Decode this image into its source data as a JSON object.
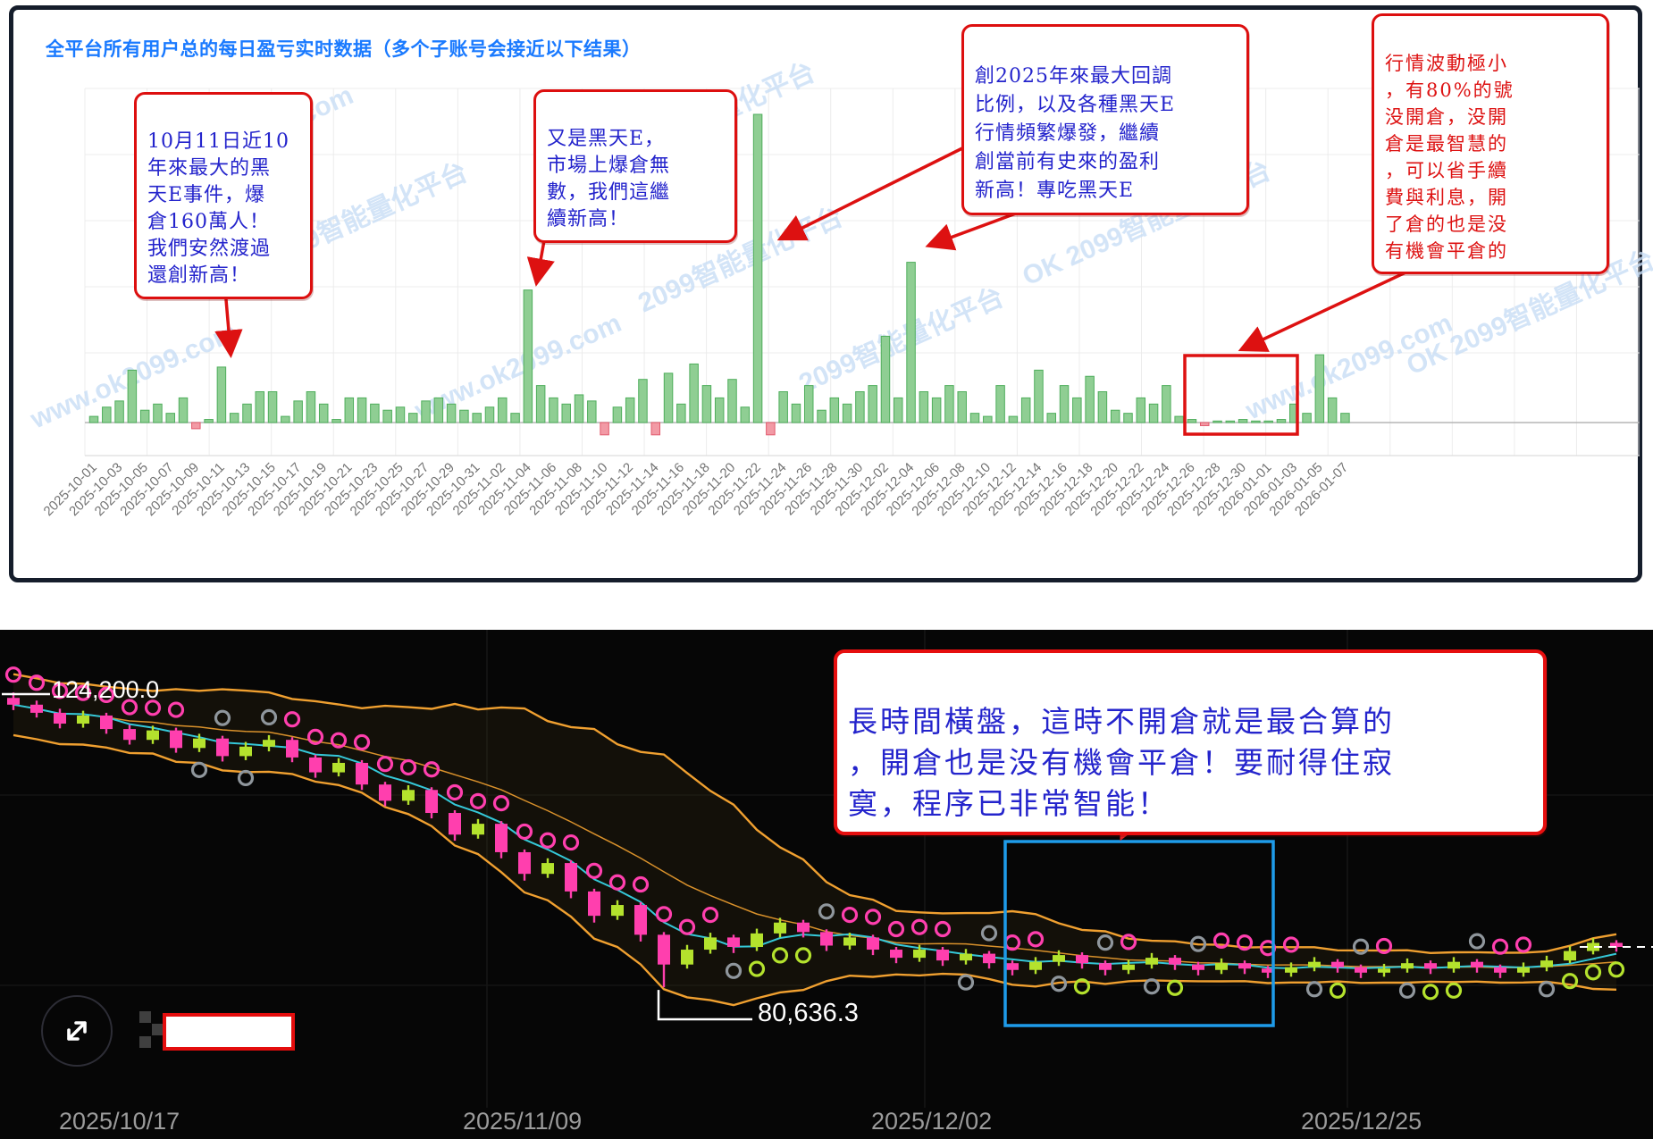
{
  "top_panel": {
    "title": "全平台所有用户总的每日盈亏实时数据（多个子账号会接近以下结果）",
    "watermarks": [
      "www.ok2099.com",
      "2099智能量化平台",
      "OK 2099智能量化平台"
    ],
    "annotations": [
      {
        "text": "10月11日近10\n年來最大的黑\n天E事件，爆\n倉160萬人！\n我們安然渡過\n還創新高！",
        "color": "#2424cc"
      },
      {
        "text": "又是黑天E，\n市場上爆倉無\n數，我們這繼\n續新高！",
        "color": "#2424cc"
      },
      {
        "text": "創2025年來最大回調\n比例，以及各種黑天E\n行情頻繁爆發，繼續\n創當前有史來的盈利\n新高！專吃黑天E",
        "color": "#2424cc"
      },
      {
        "text": "行情波動極小\n，有80%的號\n没開倉，没開\n倉是最智慧的\n，可以省手續\n費與利息，開\n了倉的也是没\n有機會平倉的",
        "color": "#dd1111"
      }
    ]
  },
  "bottom_panel": {
    "annotation": {
      "text": "長時間橫盤，這時不開倉就是最合算的\n，開倉也是没有機會平倉！要耐得住寂\n寞，程序已非常智能！"
    },
    "price_high": "124,200.0",
    "price_low": "80,636.3",
    "x_labels": [
      "2025/10/17",
      "2025/11/09",
      "2025/12/02",
      "2025/12/25"
    ]
  },
  "colors": {
    "accent_blue": "#1a7aff",
    "bar_green_fill": "#8fce93",
    "bar_green_stroke": "#4fae5c",
    "bar_red_fill": "#f29aa5",
    "bar_red_stroke": "#e2596c",
    "annotation_red": "#dd1111",
    "annotation_blue": "#2424cc",
    "candle_up": "#b4e22d",
    "candle_down": "#ff3fae",
    "band_orange": "#f0a030",
    "ma_cyan": "#35c8d8",
    "sar_gray": "#8f969c",
    "highlight_blue": "#1e9be9",
    "watermark_blue": "#c8def6"
  },
  "chart_data": [
    {
      "type": "bar",
      "title": "全平台所有用户总的每日盈亏实时数据（多个子账号会接近以下结果）",
      "frequency": "daily",
      "start_date": "2025-10-01",
      "end_date": "2026-01-07",
      "xlabel": "",
      "ylabel": "",
      "grid": true,
      "tick_labels": [
        "2025-10-01",
        "2025-10-03",
        "2025-10-05",
        "2025-10-07",
        "2025-10-09",
        "2025-10-11",
        "2025-10-13",
        "2025-10-15",
        "2025-10-17",
        "2025-10-19",
        "2025-10-21",
        "2025-10-23",
        "2025-10-25",
        "2025-10-27",
        "2025-10-29",
        "2025-10-31",
        "2025-11-02",
        "2025-11-04",
        "2025-11-06",
        "2025-11-08",
        "2025-11-10",
        "2025-11-12",
        "2025-11-14",
        "2025-11-16",
        "2025-11-18",
        "2025-11-20",
        "2025-11-22",
        "2025-11-24",
        "2025-11-26",
        "2025-11-28",
        "2025-11-30",
        "2025-12-02",
        "2025-12-04",
        "2025-12-06",
        "2025-12-08",
        "2025-12-10",
        "2025-12-12",
        "2025-12-14",
        "2025-12-16",
        "2025-12-18",
        "2025-12-20",
        "2025-12-22",
        "2025-12-24",
        "2025-12-26",
        "2025-12-28",
        "2025-12-30",
        "2026-01-01",
        "2026-01-03",
        "2026-01-05",
        "2026-01-07"
      ],
      "values": [
        2,
        5,
        7,
        17,
        4,
        6,
        3,
        8,
        -2,
        1,
        18,
        3,
        6,
        10,
        10,
        2,
        7,
        10,
        6,
        1,
        8,
        8,
        6,
        4,
        5,
        3,
        7,
        8,
        6,
        4,
        3,
        5,
        8,
        3,
        43,
        12,
        8,
        6,
        9,
        7,
        -4,
        5,
        8,
        14,
        -4,
        16,
        6,
        19,
        12,
        8,
        14,
        5,
        100,
        -4,
        10,
        6,
        12,
        4,
        8,
        6,
        10,
        12,
        28,
        8,
        52,
        10,
        8,
        12,
        10,
        3,
        2,
        12,
        2,
        8,
        17,
        3,
        12,
        8,
        15,
        10,
        4,
        3,
        8,
        6,
        12,
        2,
        1,
        -1,
        0.5,
        0.5,
        1,
        0.5,
        0.5,
        1,
        6,
        3,
        22,
        8,
        3
      ],
      "value_unit": "relative profit units (no y-axis labels shown)",
      "ylim": [
        -10,
        105
      ]
    },
    {
      "type": "candlestick",
      "x_axis_labels": [
        "2025/10/17",
        "2025/11/09",
        "2025/12/02",
        "2025/12/25"
      ],
      "price_high_label": "124,200.0",
      "price_low_label": "80,636.3",
      "unit_scale": 1000,
      "overlays": [
        "bollinger-bands-orange",
        "sma-cyan",
        "sar-dots-pink-above",
        "sar-dots-green-below",
        "highlight-box-blue",
        "dashed-last-price-line"
      ],
      "candles": [
        [
          123.4,
          124.2,
          121.6,
          122.4
        ],
        [
          122.4,
          123.0,
          120.5,
          121.2
        ],
        [
          121.2,
          121.8,
          118.9,
          119.6
        ],
        [
          119.6,
          121.5,
          119.0,
          120.8
        ],
        [
          120.8,
          121.2,
          118.1,
          118.8
        ],
        [
          118.8,
          119.4,
          116.5,
          117.2
        ],
        [
          117.2,
          119.3,
          116.6,
          118.6
        ],
        [
          118.6,
          119.0,
          115.3,
          116.0
        ],
        [
          116.0,
          118.1,
          115.4,
          117.4
        ],
        [
          117.4,
          117.8,
          114.0,
          114.8
        ],
        [
          114.8,
          116.9,
          114.2,
          116.2
        ],
        [
          116.2,
          117.9,
          115.5,
          117.2
        ],
        [
          117.2,
          117.6,
          113.9,
          114.6
        ],
        [
          114.6,
          115.0,
          111.6,
          112.4
        ],
        [
          112.4,
          114.5,
          111.8,
          113.8
        ],
        [
          113.8,
          114.2,
          109.8,
          110.6
        ],
        [
          110.6,
          111.0,
          107.4,
          108.2
        ],
        [
          108.2,
          110.5,
          107.6,
          109.8
        ],
        [
          109.8,
          110.2,
          105.6,
          106.4
        ],
        [
          106.4,
          106.8,
          102.3,
          103.2
        ],
        [
          103.2,
          105.5,
          102.6,
          104.8
        ],
        [
          104.8,
          105.2,
          99.7,
          100.6
        ],
        [
          100.6,
          101.0,
          96.4,
          97.4
        ],
        [
          97.4,
          99.7,
          96.8,
          99.0
        ],
        [
          99.0,
          99.4,
          93.8,
          94.8
        ],
        [
          94.8,
          95.2,
          90.2,
          91.2
        ],
        [
          91.2,
          93.5,
          90.6,
          92.8
        ],
        [
          92.8,
          93.2,
          87.4,
          88.4
        ],
        [
          88.4,
          88.8,
          80.64,
          84.0
        ],
        [
          84.0,
          86.9,
          83.4,
          86.2
        ],
        [
          86.2,
          88.7,
          85.6,
          88.0
        ],
        [
          88.0,
          88.4,
          85.7,
          86.6
        ],
        [
          86.6,
          89.3,
          86.0,
          88.6
        ],
        [
          88.6,
          90.9,
          88.0,
          90.2
        ],
        [
          90.2,
          90.6,
          88.0,
          88.8
        ],
        [
          88.8,
          89.2,
          86.0,
          86.8
        ],
        [
          86.8,
          88.7,
          86.2,
          88.0
        ],
        [
          88.0,
          88.4,
          85.4,
          86.2
        ],
        [
          86.2,
          86.6,
          84.2,
          85.0
        ],
        [
          85.0,
          86.9,
          84.4,
          86.2
        ],
        [
          86.2,
          86.6,
          83.8,
          84.6
        ],
        [
          84.6,
          86.3,
          84.0,
          85.6
        ],
        [
          85.6,
          86.0,
          83.4,
          84.2
        ],
        [
          84.2,
          84.6,
          82.4,
          83.2
        ],
        [
          83.2,
          85.1,
          82.6,
          84.4
        ],
        [
          84.4,
          86.1,
          83.8,
          85.4
        ],
        [
          85.4,
          85.8,
          83.4,
          84.2
        ],
        [
          84.2,
          84.6,
          82.4,
          83.2
        ],
        [
          83.2,
          84.7,
          82.6,
          84.0
        ],
        [
          84.0,
          85.7,
          83.4,
          85.0
        ],
        [
          85.0,
          85.4,
          83.2,
          84.0
        ],
        [
          84.0,
          84.4,
          82.4,
          83.2
        ],
        [
          83.2,
          84.9,
          82.6,
          84.2
        ],
        [
          84.2,
          84.6,
          82.6,
          83.4
        ],
        [
          83.4,
          83.8,
          82.0,
          82.8
        ],
        [
          82.8,
          84.3,
          82.2,
          83.6
        ],
        [
          83.6,
          85.1,
          83.0,
          84.4
        ],
        [
          84.4,
          84.8,
          82.8,
          83.6
        ],
        [
          83.6,
          84.0,
          82.0,
          82.8
        ],
        [
          82.8,
          84.1,
          82.2,
          83.4
        ],
        [
          83.4,
          84.9,
          82.8,
          84.2
        ],
        [
          84.2,
          84.6,
          82.6,
          83.4
        ],
        [
          83.4,
          85.1,
          82.8,
          84.4
        ],
        [
          84.4,
          84.8,
          82.8,
          83.6
        ],
        [
          83.6,
          84.0,
          82.0,
          82.8
        ],
        [
          82.8,
          84.3,
          82.2,
          83.6
        ],
        [
          83.6,
          85.3,
          83.0,
          84.6
        ],
        [
          84.6,
          86.7,
          84.2,
          86.0
        ],
        [
          86.0,
          87.9,
          85.5,
          87.2
        ],
        [
          87.2,
          87.6,
          85.9,
          86.6
        ]
      ]
    }
  ]
}
